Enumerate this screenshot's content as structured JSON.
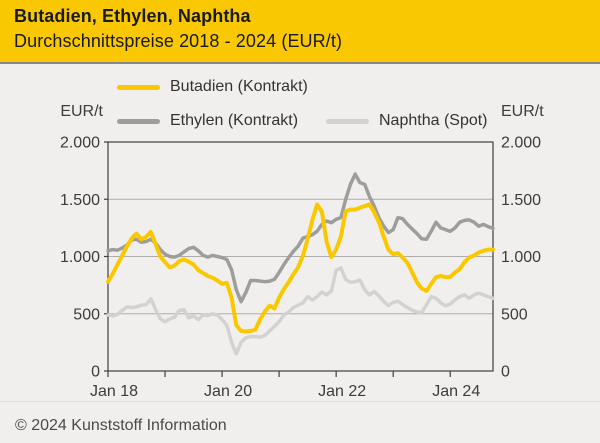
{
  "header": {
    "title": "Butadien, Ethylen, Naphtha",
    "subtitle": "Durchschnittspreise 2018 - 2024 (EUR/t)"
  },
  "colors": {
    "header_bg": "#F9C803",
    "background": "#F0EFED",
    "axis": "#3F3F3F",
    "grid": "#ADADAB",
    "tick_text": "#3C3C3C",
    "butadien": "#FBC800",
    "ethylen": "#9D9D9D",
    "naphtha": "#D2D2D2"
  },
  "footer": {
    "copyright": "© 2024 Kunststoff Information"
  },
  "chart_data": {
    "type": "line",
    "title": "Butadien, Ethylen, Naphtha",
    "subtitle": "Durchschnittspreise 2018 - 2024 (EUR/t)",
    "ylabel": "EUR/t",
    "ylim": [
      0,
      2000
    ],
    "yticks": [
      0,
      500,
      1000,
      1500,
      2000
    ],
    "ytick_labels": [
      "0",
      "500",
      "1.000",
      "1.500",
      "2.000"
    ],
    "grid": "horizontal",
    "legend_position": "top",
    "x_interval": "monthly",
    "x_start": "Jan 2018",
    "x_end": "Okt 2024",
    "x_year_tick_count": 7,
    "xtick_labels": [
      "Jan 18",
      null,
      "Jan 20",
      null,
      "Jan 22",
      null,
      "Jan 24"
    ],
    "series": [
      {
        "name": "Butadien (Kontrakt)",
        "color": "#FBC800",
        "values": [
          780,
          850,
          930,
          1010,
          1090,
          1160,
          1200,
          1150,
          1170,
          1215,
          1110,
          1000,
          950,
          905,
          920,
          960,
          975,
          955,
          930,
          880,
          855,
          830,
          815,
          790,
          760,
          770,
          640,
          400,
          350,
          345,
          350,
          360,
          450,
          520,
          570,
          545,
          640,
          715,
          775,
          845,
          905,
          1005,
          1150,
          1320,
          1455,
          1390,
          1130,
          995,
          1060,
          1175,
          1395,
          1410,
          1410,
          1425,
          1440,
          1455,
          1385,
          1300,
          1175,
          1060,
          1020,
          1030,
          990,
          945,
          860,
          775,
          720,
          700,
          760,
          820,
          830,
          820,
          820,
          860,
          890,
          950,
          990,
          1010,
          1035,
          1050,
          1060,
          1060
        ]
      },
      {
        "name": "Ethylen (Kontrakt)",
        "color": "#9D9D9D",
        "values": [
          1050,
          1060,
          1055,
          1075,
          1100,
          1145,
          1150,
          1125,
          1130,
          1150,
          1120,
          1060,
          1020,
          1000,
          995,
          1010,
          1040,
          1070,
          1080,
          1050,
          1010,
          995,
          1010,
          1000,
          990,
          975,
          885,
          710,
          605,
          685,
          790,
          790,
          785,
          780,
          785,
          800,
          860,
          930,
          990,
          1045,
          1090,
          1160,
          1175,
          1190,
          1220,
          1280,
          1310,
          1295,
          1325,
          1340,
          1500,
          1630,
          1720,
          1645,
          1630,
          1525,
          1440,
          1340,
          1265,
          1210,
          1235,
          1340,
          1330,
          1280,
          1240,
          1200,
          1155,
          1150,
          1220,
          1300,
          1250,
          1235,
          1220,
          1250,
          1300,
          1315,
          1320,
          1300,
          1265,
          1280,
          1260,
          1245
        ]
      },
      {
        "name": "Naphtha (Spot)",
        "color": "#D2D2D2",
        "values": [
          490,
          480,
          495,
          530,
          560,
          555,
          560,
          575,
          580,
          630,
          540,
          455,
          430,
          455,
          470,
          530,
          535,
          465,
          480,
          450,
          490,
          485,
          500,
          490,
          450,
          400,
          250,
          150,
          250,
          290,
          300,
          300,
          295,
          310,
          350,
          390,
          430,
          490,
          515,
          555,
          575,
          595,
          650,
          620,
          650,
          690,
          665,
          700,
          880,
          900,
          800,
          775,
          780,
          795,
          710,
          665,
          695,
          655,
          610,
          570,
          600,
          610,
          580,
          555,
          530,
          515,
          510,
          580,
          650,
          635,
          595,
          570,
          585,
          620,
          650,
          665,
          635,
          665,
          680,
          665,
          650,
          635
        ]
      }
    ]
  }
}
